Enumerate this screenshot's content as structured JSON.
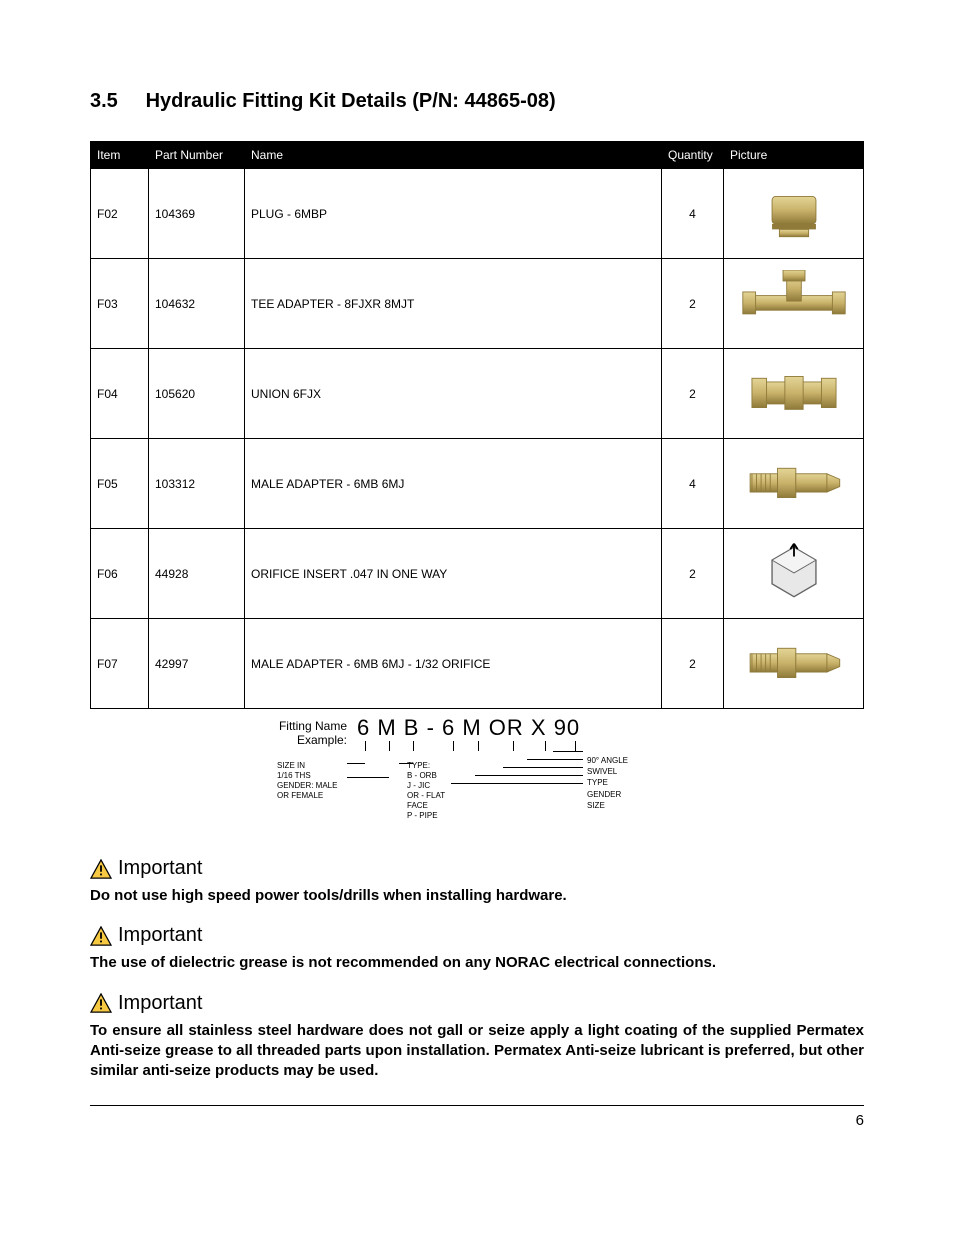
{
  "section": {
    "number": "3.5",
    "title": "Hydraulic Fitting Kit Details (P/N: 44865-08)"
  },
  "table": {
    "headers": {
      "item": "Item",
      "pn": "Part Number",
      "name": "Name",
      "qty": "Quantity",
      "pic": "Picture"
    },
    "rows": [
      {
        "item": "F02",
        "pn": "104369",
        "name": "PLUG - 6MBP",
        "qty": "4",
        "icon": "plug"
      },
      {
        "item": "F03",
        "pn": "104632",
        "name": "TEE ADAPTER - 8FJXR 8MJT",
        "qty": "2",
        "icon": "tee"
      },
      {
        "item": "F04",
        "pn": "105620",
        "name": "UNION 6FJX",
        "qty": "2",
        "icon": "union"
      },
      {
        "item": "F05",
        "pn": "103312",
        "name": "MALE ADAPTER -  6MB 6MJ",
        "qty": "4",
        "icon": "male"
      },
      {
        "item": "F06",
        "pn": "44928",
        "name": "ORIFICE INSERT .047 IN ONE WAY",
        "qty": "2",
        "icon": "orifice"
      },
      {
        "item": "F07",
        "pn": "42997",
        "name": "MALE ADAPTER -  6MB 6MJ - 1/32 ORIFICE",
        "qty": "2",
        "icon": "male"
      }
    ]
  },
  "fitting_example": {
    "label1": "Fitting Name",
    "label2": "Example:",
    "code": "6 M B - 6 M OR X 90",
    "left_notes": "SIZE IN\n1/16 THS\nGENDER: MALE\nOR FEMALE",
    "mid_notes": "TYPE:\nB - ORB\nJ - JIC\nOR - FLAT\nFACE\nP - PIPE",
    "right_notes": "90° ANGLE\nSWIVEL\nTYPE\nGENDER\nSIZE"
  },
  "callouts": [
    {
      "heading": "Important",
      "body": "Do not use high speed power tools/drills when installing hardware."
    },
    {
      "heading": "Important",
      "body": "The use of dielectric grease is not recommended on any NORAC electrical connections."
    },
    {
      "heading": "Important",
      "body": "To ensure all stainless steel hardware does not gall or seize apply a light coating of the supplied Permatex Anti-seize grease to all threaded parts upon installation. Permatex Anti-seize lubricant is preferred, but other similar anti-seize products may be used."
    }
  ],
  "page_number": "6",
  "colors": {
    "brass1": "#c9b26a",
    "brass2": "#8f7a3a",
    "brass3": "#e3d597",
    "steel1": "#bfbfbf",
    "steel2": "#8a8a8a",
    "warn_fill": "#f7c943",
    "warn_stroke": "#000000"
  }
}
